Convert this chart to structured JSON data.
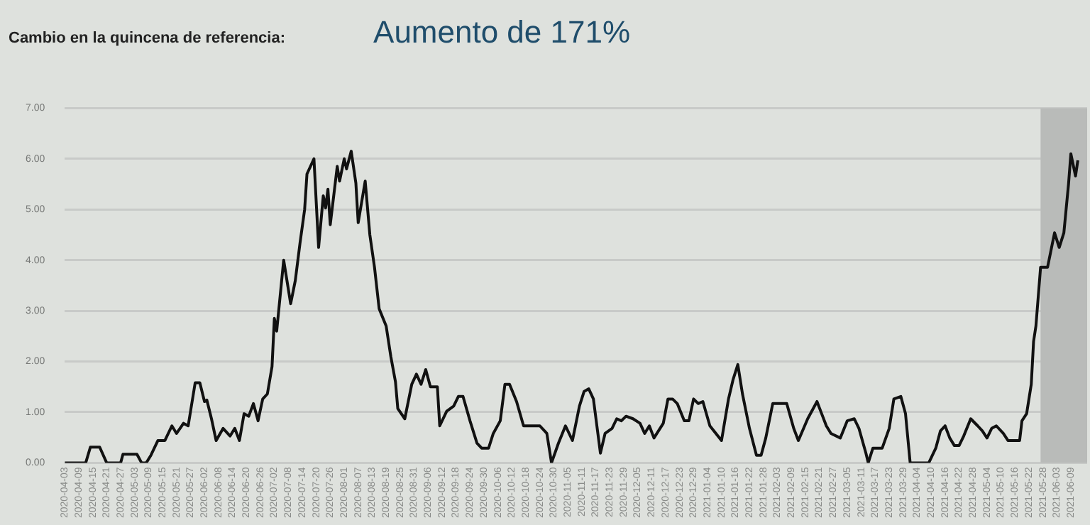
{
  "chart_data": {
    "type": "line",
    "title": "Cambio en la quincena de referencia:",
    "subtitle": "Aumento de 171%",
    "x": [
      "2020-04-03",
      "2020-04-12",
      "2020-04-14",
      "2020-04-18",
      "2020-04-21",
      "2020-04-27",
      "2020-04-28",
      "2020-05-04",
      "2020-05-06",
      "2020-05-08",
      "2020-05-10",
      "2020-05-13",
      "2020-05-16",
      "2020-05-19",
      "2020-05-21",
      "2020-05-24",
      "2020-05-26",
      "2020-05-29",
      "2020-05-31",
      "2020-06-02",
      "2020-06-03",
      "2020-06-05",
      "2020-06-07",
      "2020-06-10",
      "2020-06-13",
      "2020-06-15",
      "2020-06-17",
      "2020-06-19",
      "2020-06-21",
      "2020-06-23",
      "2020-06-25",
      "2020-06-27",
      "2020-06-29",
      "2020-07-01",
      "2020-07-02",
      "2020-07-03",
      "2020-07-06",
      "2020-07-09",
      "2020-07-11",
      "2020-07-13",
      "2020-07-15",
      "2020-07-16",
      "2020-07-19",
      "2020-07-21",
      "2020-07-23",
      "2020-07-24",
      "2020-07-25",
      "2020-07-26",
      "2020-07-29",
      "2020-07-30",
      "2020-08-01",
      "2020-08-02",
      "2020-08-04",
      "2020-08-06",
      "2020-08-07",
      "2020-08-10",
      "2020-08-12",
      "2020-08-14",
      "2020-08-16",
      "2020-08-19",
      "2020-08-21",
      "2020-08-23",
      "2020-08-24",
      "2020-08-27",
      "2020-08-30",
      "2020-09-01",
      "2020-09-03",
      "2020-09-05",
      "2020-09-07",
      "2020-09-10",
      "2020-09-11",
      "2020-09-14",
      "2020-09-17",
      "2020-09-19",
      "2020-09-21",
      "2020-09-24",
      "2020-09-27",
      "2020-09-29",
      "2020-10-02",
      "2020-10-04",
      "2020-10-07",
      "2020-10-09",
      "2020-10-11",
      "2020-10-14",
      "2020-10-17",
      "2020-10-24",
      "2020-10-27",
      "2020-10-29",
      "2020-11-01",
      "2020-11-04",
      "2020-11-07",
      "2020-11-10",
      "2020-11-12",
      "2020-11-14",
      "2020-11-16",
      "2020-11-19",
      "2020-11-21",
      "2020-11-24",
      "2020-11-26",
      "2020-11-28",
      "2020-11-30",
      "2020-12-03",
      "2020-12-06",
      "2020-12-08",
      "2020-12-10",
      "2020-12-12",
      "2020-12-16",
      "2020-12-18",
      "2020-12-20",
      "2020-12-22",
      "2020-12-25",
      "2020-12-27",
      "2020-12-29",
      "2020-12-31",
      "2021-01-02",
      "2021-01-05",
      "2021-01-10",
      "2021-01-13",
      "2021-01-15",
      "2021-01-17",
      "2021-01-19",
      "2021-01-22",
      "2021-01-25",
      "2021-01-27",
      "2021-01-29",
      "2021-02-01",
      "2021-02-07",
      "2021-02-10",
      "2021-02-12",
      "2021-02-16",
      "2021-02-20",
      "2021-02-22",
      "2021-02-24",
      "2021-02-26",
      "2021-03-02",
      "2021-03-05",
      "2021-03-08",
      "2021-03-10",
      "2021-03-13",
      "2021-03-14",
      "2021-03-16",
      "2021-03-20",
      "2021-03-23",
      "2021-03-25",
      "2021-03-28",
      "2021-03-30",
      "2021-04-01",
      "2021-04-09",
      "2021-04-12",
      "2021-04-14",
      "2021-04-16",
      "2021-04-18",
      "2021-04-20",
      "2021-04-22",
      "2021-04-24",
      "2021-04-27",
      "2021-04-30",
      "2021-05-02",
      "2021-05-04",
      "2021-05-06",
      "2021-05-08",
      "2021-05-11",
      "2021-05-13",
      "2021-05-18",
      "2021-05-19",
      "2021-05-21",
      "2021-05-23",
      "2021-05-24",
      "2021-05-25",
      "2021-05-27",
      "2021-05-30",
      "2021-06-02",
      "2021-06-04",
      "2021-06-06",
      "2021-06-08",
      "2021-06-09",
      "2021-06-11",
      "2021-06-12"
    ],
    "series": [
      {
        "color": "#111111",
        "values": [
          0,
          0,
          0.31,
          0.31,
          0,
          0,
          0.17,
          0.17,
          0,
          0,
          0.15,
          0.44,
          0.44,
          0.73,
          0.58,
          0.78,
          0.73,
          1.58,
          1.58,
          1.21,
          1.24,
          0.87,
          0.44,
          0.68,
          0.53,
          0.68,
          0.44,
          0.97,
          0.92,
          1.17,
          0.83,
          1.26,
          1.36,
          1.9,
          2.85,
          2.6,
          4.0,
          3.14,
          3.6,
          4.33,
          5.0,
          5.7,
          6.0,
          4.25,
          5.27,
          5.03,
          5.4,
          4.7,
          5.85,
          5.56,
          6.0,
          5.8,
          6.15,
          5.52,
          4.74,
          5.56,
          4.5,
          3.86,
          3.04,
          2.7,
          2.1,
          1.6,
          1.07,
          0.87,
          1.55,
          1.75,
          1.55,
          1.84,
          1.5,
          1.5,
          0.73,
          1.02,
          1.12,
          1.31,
          1.31,
          0.83,
          0.39,
          0.29,
          0.29,
          0.58,
          0.83,
          1.55,
          1.55,
          1.21,
          0.73,
          0.73,
          0.58,
          0,
          0.39,
          0.73,
          0.44,
          1.12,
          1.41,
          1.46,
          1.26,
          0.19,
          0.58,
          0.68,
          0.87,
          0.83,
          0.92,
          0.87,
          0.78,
          0.58,
          0.73,
          0.49,
          0.78,
          1.26,
          1.26,
          1.17,
          0.83,
          0.83,
          1.26,
          1.17,
          1.21,
          0.73,
          0.44,
          1.26,
          1.65,
          1.94,
          1.36,
          0.68,
          0.15,
          0.15,
          0.49,
          1.17,
          1.17,
          0.68,
          0.44,
          0.87,
          1.21,
          0.97,
          0.73,
          0.58,
          0.49,
          0.83,
          0.87,
          0.68,
          0.19,
          0,
          0.29,
          0.29,
          0.68,
          1.26,
          1.31,
          0.97,
          0,
          0,
          0.29,
          0.63,
          0.73,
          0.49,
          0.34,
          0.34,
          0.53,
          0.87,
          0.73,
          0.63,
          0.49,
          0.68,
          0.73,
          0.58,
          0.44,
          0.44,
          0.83,
          0.97,
          1.55,
          2.4,
          2.7,
          3.86,
          3.86,
          4.54,
          4.25,
          4.54,
          5.5,
          6.1,
          5.66,
          5.97
        ]
      }
    ],
    "xlim": [
      "2020-04-03",
      "2021-06-16"
    ],
    "xticks": [
      "2020-04-03",
      "2020-04-09",
      "2020-04-15",
      "2020-04-21",
      "2020-04-27",
      "2020-05-03",
      "2020-05-09",
      "2020-05-15",
      "2020-05-21",
      "2020-05-27",
      "2020-06-02",
      "2020-06-08",
      "2020-06-14",
      "2020-06-20",
      "2020-06-26",
      "2020-07-02",
      "2020-07-08",
      "2020-07-14",
      "2020-07-20",
      "2020-07-26",
      "2020-08-01",
      "2020-08-07",
      "2020-08-13",
      "2020-08-19",
      "2020-08-25",
      "2020-08-31",
      "2020-09-06",
      "2020-09-12",
      "2020-09-18",
      "2020-09-24",
      "2020-09-30",
      "2020-10-06",
      "2020-10-12",
      "2020-10-18",
      "2020-10-24",
      "2020-10-30",
      "2020-11-05",
      "2020-11-11",
      "2020-11-17",
      "2020-11-23",
      "2020-11-29",
      "2020-12-05",
      "2020-12-11",
      "2020-12-17",
      "2020-12-23",
      "2020-12-29",
      "2021-01-04",
      "2021-01-10",
      "2021-01-16",
      "2021-01-22",
      "2021-01-28",
      "2021-02-03",
      "2021-02-09",
      "2021-02-15",
      "2021-02-21",
      "2021-02-27",
      "2021-03-05",
      "2021-03-11",
      "2021-03-17",
      "2021-03-23",
      "2021-03-29",
      "2021-04-04",
      "2021-04-10",
      "2021-04-16",
      "2021-04-22",
      "2021-04-28",
      "2021-05-04",
      "2021-05-10",
      "2021-05-16",
      "2021-05-22",
      "2021-05-28",
      "2021-06-03",
      "2021-06-09"
    ],
    "ylim": [
      0,
      7
    ],
    "yticks": [
      {
        "value": 0,
        "label": "0.00"
      },
      {
        "value": 1,
        "label": "1.00"
      },
      {
        "value": 2,
        "label": "2.00"
      },
      {
        "value": 3,
        "label": "3.00"
      },
      {
        "value": 4,
        "label": "4.00"
      },
      {
        "value": 5,
        "label": "5.00"
      },
      {
        "value": 6,
        "label": "6.00"
      },
      {
        "value": 7,
        "label": "7.00"
      }
    ],
    "bands": [
      {
        "axis": "x",
        "from": "2021-05-27",
        "to": "2021-06-16",
        "color": "#b9bbb9"
      }
    ],
    "grid": "y",
    "legend": false,
    "marker": "none",
    "line_style": "solid"
  }
}
